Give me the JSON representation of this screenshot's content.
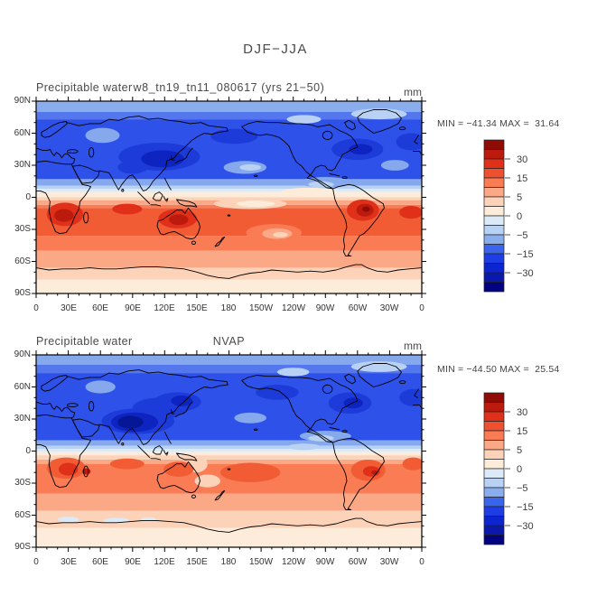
{
  "figure_title": "DJF−JJA",
  "panels": [
    {
      "variable_label": "Precipitable water",
      "case_title": "w8_tn19_tn11_080617 (yrs 21−50)",
      "units": "mm",
      "stats": "MIN = −41.34 MAX =  31.64"
    },
    {
      "variable_label": "Precipitable water",
      "case_title": "NVAP",
      "units": "mm",
      "stats": "MIN = −44.50 MAX =  25.54"
    }
  ],
  "axes": {
    "y_labels": [
      "90N",
      "60N",
      "30N",
      "0",
      "30S",
      "60S",
      "90S"
    ],
    "x_labels": [
      "0",
      "30E",
      "60E",
      "90E",
      "120E",
      "150E",
      "180",
      "150W",
      "120W",
      "90W",
      "60W",
      "30W",
      "0"
    ]
  },
  "colorbar": {
    "labels": [
      "30",
      "15",
      "5",
      "0",
      "−5",
      "−15",
      "−30"
    ],
    "palette_top_to_bottom": [
      "#8e0b06",
      "#bb1a0d",
      "#e0301a",
      "#ef5030",
      "#f97c55",
      "#fba887",
      "#fcd2b8",
      "#fdecd9",
      "#dceaf8",
      "#b9d2f3",
      "#8aadee",
      "#3a64ec",
      "#1f3de5",
      "#0c25cf",
      "#0a18ab",
      "#030280"
    ]
  },
  "chart_data": [
    {
      "type": "heatmap",
      "variable": "Precipitable water",
      "title": "w8_tn19_tn11_080617 (yrs 21−50)",
      "season_difference": "DJF−JJA",
      "units": "mm",
      "min": -41.34,
      "max": 31.64,
      "lon_range_deg_east": [
        0,
        360
      ],
      "lat_range": [
        -90,
        90
      ],
      "x_tick_labels": [
        "0",
        "30E",
        "60E",
        "90E",
        "120E",
        "150E",
        "180",
        "150W",
        "120W",
        "90W",
        "60W",
        "30W",
        "0"
      ],
      "y_tick_labels": [
        "90N",
        "60N",
        "30N",
        "0",
        "30S",
        "60S",
        "90S"
      ],
      "colorbar_labeled_levels": [
        30,
        15,
        5,
        0,
        -5,
        -15,
        -30
      ],
      "contour_levels_inferred": [
        -40,
        -30,
        -20,
        -15,
        -10,
        -5,
        -2,
        0,
        2,
        5,
        10,
        15,
        20,
        30,
        40
      ],
      "legend_position": "right",
      "grid": false,
      "pattern_summary": "Negative (blue) values across the Northern Hemisphere, darkest over East Asia and eastern North America; positive (red) values across the southern tropics with dark-red cores over southern Africa, northern Australia and South America; pale cream band along the equator and near Antarctica."
    },
    {
      "type": "heatmap",
      "variable": "Precipitable water",
      "title": "NVAP",
      "season_difference": "DJF−JJA",
      "units": "mm",
      "min": -44.5,
      "max": 25.54,
      "lon_range_deg_east": [
        0,
        360
      ],
      "lat_range": [
        -90,
        90
      ],
      "x_tick_labels": [
        "0",
        "30E",
        "60E",
        "90E",
        "120E",
        "150E",
        "180",
        "150W",
        "120W",
        "90W",
        "60W",
        "30W",
        "0"
      ],
      "y_tick_labels": [
        "90N",
        "60N",
        "30N",
        "0",
        "30S",
        "60S",
        "90S"
      ],
      "colorbar_labeled_levels": [
        30,
        15,
        5,
        0,
        -5,
        -15,
        -30
      ],
      "contour_levels_inferred": [
        -40,
        -30,
        -20,
        -15,
        -10,
        -5,
        -2,
        0,
        2,
        5,
        10,
        15,
        20,
        30,
        40
      ],
      "legend_position": "right",
      "grid": false,
      "pattern_summary": "Similar dipole: broad negative (blue) Northern Hemisphere band with darkest core over South Asia; weaker positive (orange/salmon) anomalies over the southern tropics; small pale-blue patches near the Antarctic coast."
    }
  ]
}
